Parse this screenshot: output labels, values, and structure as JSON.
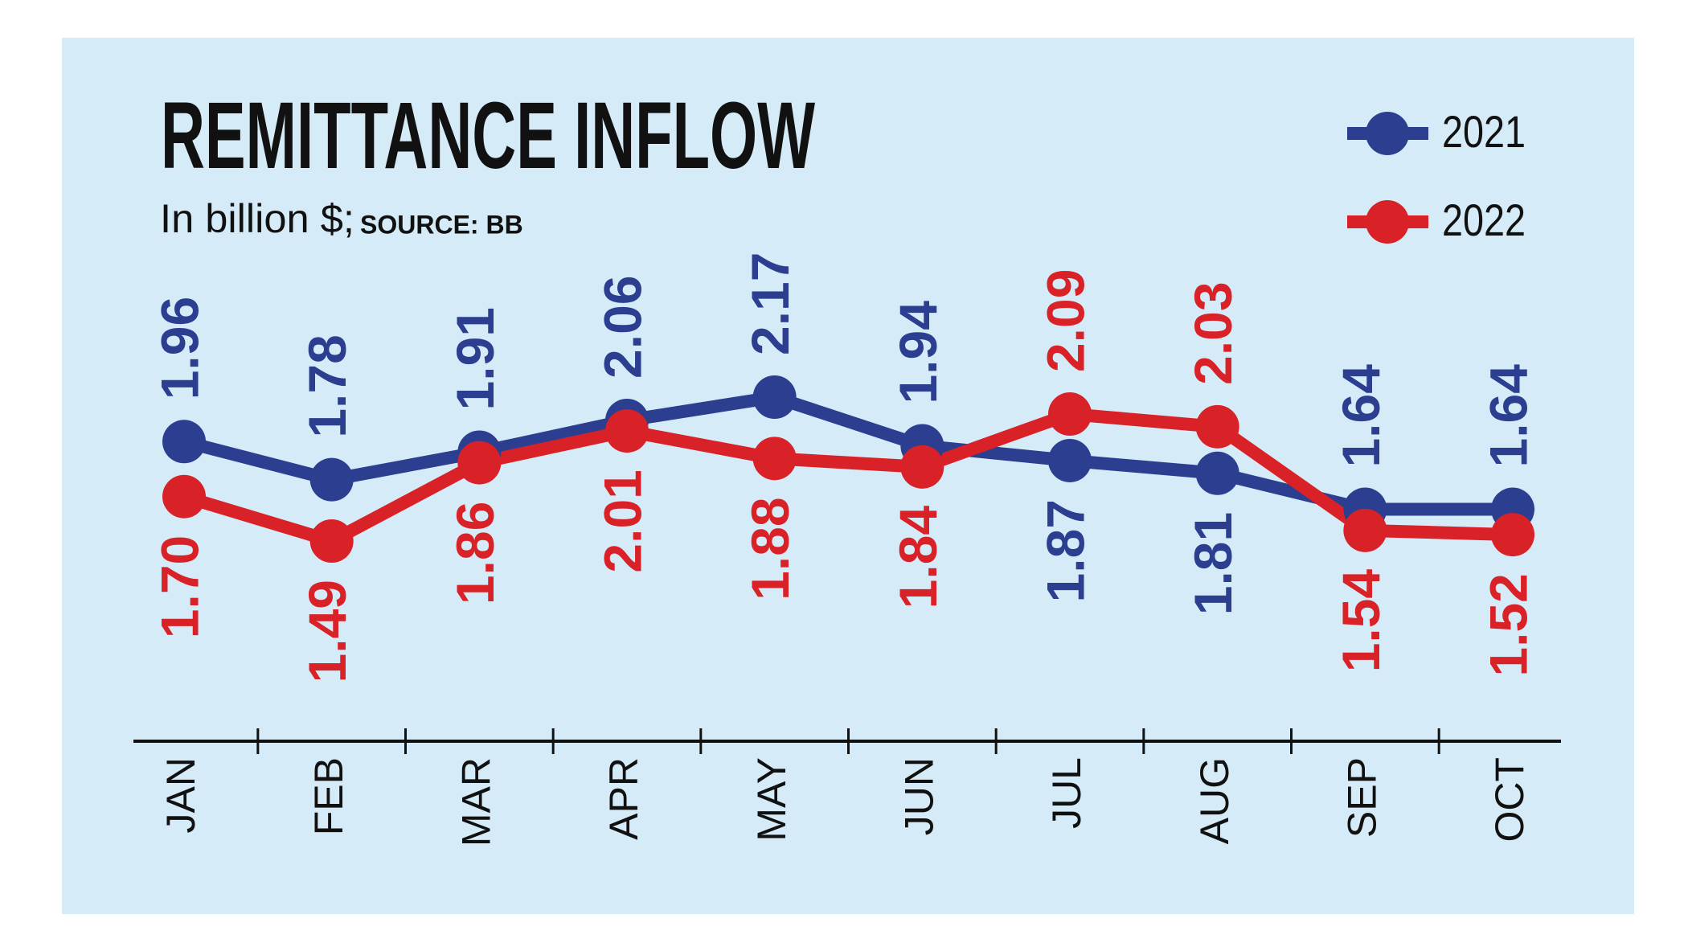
{
  "chart_data": {
    "type": "line",
    "title": "REMITTANCE INFLOW",
    "subtitle": "In billion $;",
    "source": "SOURCE: BB",
    "categories": [
      "JAN",
      "FEB",
      "MAR",
      "APR",
      "MAY",
      "JUN",
      "JUL",
      "AUG",
      "SEP",
      "OCT"
    ],
    "series": [
      {
        "name": "2021",
        "color": "#2b3e8f",
        "values": [
          1.96,
          1.78,
          1.91,
          2.06,
          2.17,
          1.94,
          1.87,
          1.81,
          1.64,
          1.64
        ],
        "value_labels": [
          "1.96",
          "1.78",
          "1.91",
          "2.06",
          "2.17",
          "1.94",
          "1.87",
          "1.81",
          "1.64",
          "1.64"
        ]
      },
      {
        "name": "2022",
        "color": "#d92128",
        "values": [
          1.7,
          1.49,
          1.86,
          2.01,
          1.88,
          1.84,
          2.09,
          2.03,
          1.54,
          1.52
        ],
        "value_labels": [
          "1.70",
          "1.49",
          "1.86",
          "2.01",
          "1.88",
          "1.84",
          "2.09",
          "2.03",
          "1.54",
          "1.52"
        ]
      }
    ],
    "legend": "top-right"
  }
}
